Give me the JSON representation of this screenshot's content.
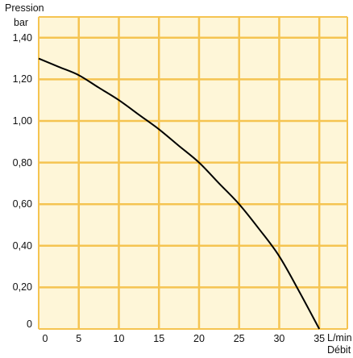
{
  "chart_data": {
    "type": "line",
    "ylabel_line1": "Pression",
    "ylabel_line2": "bar",
    "xunit": "L/min",
    "xlabel": "Débit",
    "xlim": [
      0,
      38.5
    ],
    "ylim": [
      0,
      1.5
    ],
    "xticks": [
      0,
      5,
      10,
      15,
      20,
      25,
      30,
      35
    ],
    "xtick_labels": [
      "0",
      "5",
      "10",
      "15",
      "20",
      "25",
      "30",
      "35"
    ],
    "yticks": [
      0,
      0.2,
      0.4,
      0.6,
      0.8,
      1.0,
      1.2,
      1.4
    ],
    "ytick_labels": [
      "0",
      "0,20",
      "0,40",
      "0,60",
      "0,80",
      "1,00",
      "1,20",
      "1,40"
    ],
    "grid": true,
    "background_color": "#fef6d8",
    "grid_color": "#f5c451",
    "line_color": "#000000",
    "series": [
      {
        "x": [
          0,
          2.5,
          5,
          7.5,
          10,
          12.5,
          15,
          17.5,
          20,
          22.5,
          25,
          27.5,
          30,
          32.5,
          35
        ],
        "y": [
          1.3,
          1.26,
          1.22,
          1.16,
          1.1,
          1.03,
          0.96,
          0.88,
          0.8,
          0.7,
          0.6,
          0.48,
          0.35,
          0.18,
          0.0
        ]
      }
    ]
  }
}
